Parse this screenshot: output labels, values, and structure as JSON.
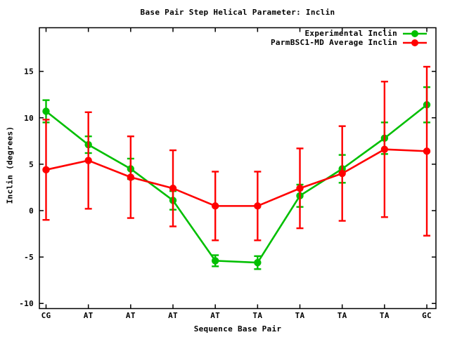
{
  "window": {
    "background": "#ffffff"
  },
  "chart_data": {
    "type": "line",
    "title": "Base Pair Step Helical Parameter: Inclin",
    "xlabel": "Sequence Base Pair",
    "ylabel": "Inclin (degrees)",
    "categories": [
      "CG",
      "AT",
      "AT",
      "AT",
      "AT",
      "TA",
      "TA",
      "TA",
      "TA",
      "GC"
    ],
    "yticks": [
      -10,
      -5,
      0,
      5,
      10,
      15
    ],
    "ylim": [
      -10.55,
      19.7
    ],
    "grid": false,
    "legend_position": "top-right-inside",
    "error_bars": true,
    "axis_color": "#000000",
    "series": [
      {
        "name": "Experimental Inclin",
        "color": "#00bf00",
        "marker": "filled-circle",
        "values": [
          10.7,
          7.1,
          4.5,
          1.1,
          -5.4,
          -5.6,
          1.6,
          4.5,
          7.8,
          11.4
        ],
        "yerr": [
          1.2,
          0.9,
          1.1,
          1.0,
          0.6,
          0.7,
          1.2,
          1.5,
          1.7,
          1.9
        ]
      },
      {
        "name": "ParmBSC1-MD Average Inclin",
        "color": "#ff0000",
        "marker": "filled-circle",
        "values": [
          4.4,
          5.4,
          3.6,
          2.4,
          0.5,
          0.5,
          2.4,
          4.0,
          6.6,
          6.4
        ],
        "yerr": [
          5.4,
          5.2,
          4.4,
          4.1,
          3.7,
          3.7,
          4.3,
          5.1,
          7.3,
          9.1
        ]
      }
    ]
  }
}
